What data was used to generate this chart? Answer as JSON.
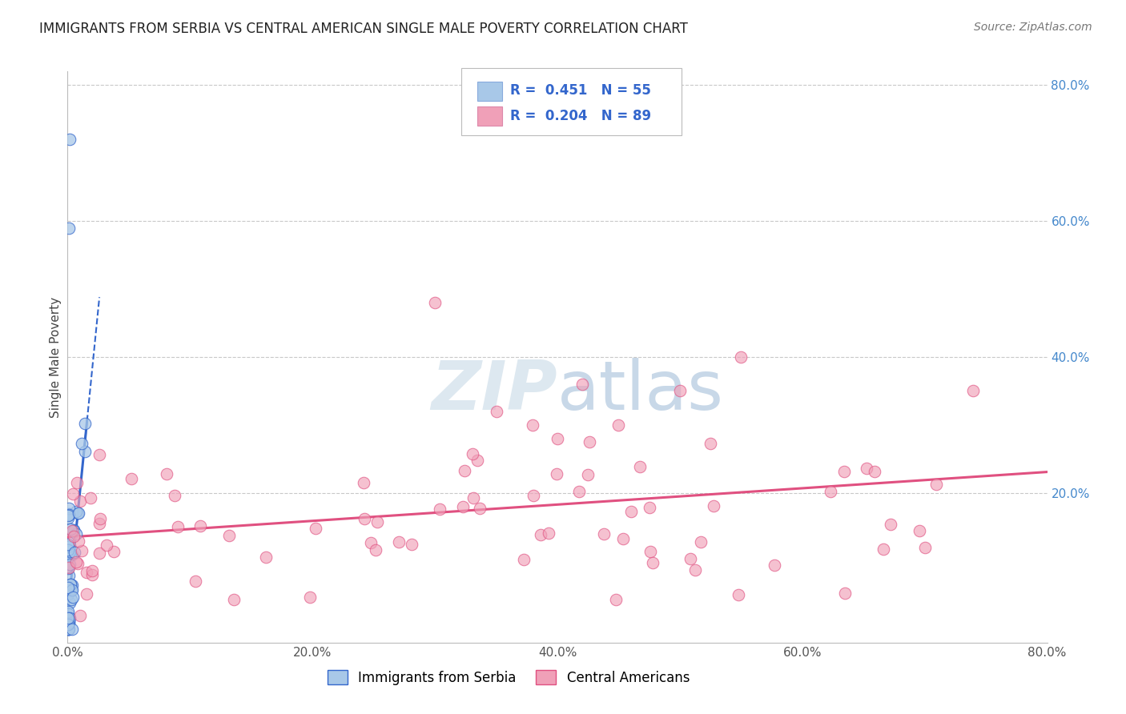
{
  "title": "IMMIGRANTS FROM SERBIA VS CENTRAL AMERICAN SINGLE MALE POVERTY CORRELATION CHART",
  "source": "Source: ZipAtlas.com",
  "ylabel": "Single Male Poverty",
  "background_color": "#ffffff",
  "grid_color": "#c8c8c8",
  "blue_dot_color": "#a8c8e8",
  "blue_line_color": "#3366cc",
  "pink_dot_color": "#f0a0b8",
  "pink_line_color": "#e05080",
  "watermark_color": "#dde8f0",
  "legend_R1": "R =  0.451",
  "legend_N1": "N = 55",
  "legend_R2": "R =  0.204",
  "legend_N2": "N = 89",
  "xlim": [
    0.0,
    0.8
  ],
  "ylim": [
    -0.02,
    0.82
  ],
  "xtick_labels": [
    "0.0%",
    "20.0%",
    "40.0%",
    "60.0%",
    "80.0%"
  ],
  "xtick_values": [
    0.0,
    0.2,
    0.4,
    0.6,
    0.8
  ],
  "ytick_labels_right": [
    "20.0%",
    "40.0%",
    "60.0%",
    "80.0%"
  ],
  "ytick_values_right": [
    0.2,
    0.4,
    0.6,
    0.8
  ],
  "legend_label1": "Immigrants from Serbia",
  "legend_label2": "Central Americans",
  "blue_intercept": 0.02,
  "blue_slope": 18.0,
  "pink_intercept": 0.135,
  "pink_slope": 0.12
}
